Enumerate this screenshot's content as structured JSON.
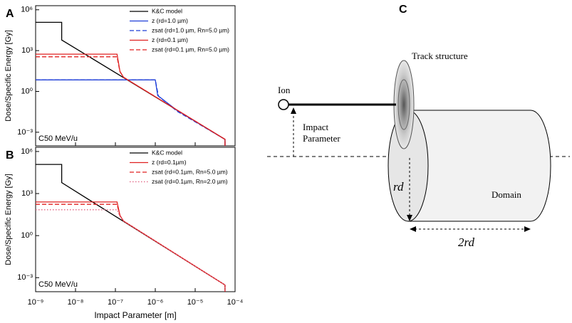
{
  "chart_data": [
    {
      "type": "line",
      "label": "A",
      "ylabel": "Dose/Specific Energy [Gy]",
      "annotation": "C50 MeV/u",
      "log_x": true,
      "log_y": true,
      "xlim": [
        1e-09,
        0.0001
      ],
      "ylim": [
        0.0001,
        2000000.0
      ],
      "xticks": [
        1e-09,
        1e-08,
        1e-07,
        1e-06,
        1e-05,
        0.0001
      ],
      "yticks": [
        {
          "value": 1000000.0,
          "label": "10⁶"
        },
        {
          "value": 1000.0,
          "label": "10³"
        },
        {
          "value": 1,
          "label": "10⁰"
        },
        {
          "value": 0.001,
          "label": "10⁻³"
        }
      ],
      "series": [
        {
          "name": "K&C model",
          "color": "#000000",
          "dash": "solid",
          "x": [
            1e-09,
            4.5e-09,
            4.5e-09,
            5.6e-05,
            5.6e-05
          ],
          "values": [
            120000.0,
            120000.0,
            6000.0,
            0.0003,
            0.0001
          ]
        },
        {
          "name": "z (rd=1.0 µm)",
          "color": "#1f3fd8",
          "dash": "solid",
          "x": [
            1e-09,
            1e-06,
            1.15e-06,
            3.5e-06,
            5.6e-05,
            5.6e-05
          ],
          "values": [
            7,
            7,
            0.5,
            0.04,
            0.0003,
            0.0001
          ]
        },
        {
          "name": "zsat (rd=1.0 µm, Rn=5.0 µm)",
          "color": "#1f3fd8",
          "dash": "dashed",
          "x": [
            1e-09,
            1e-06,
            1.2e-06,
            3.5e-06,
            5.6e-05,
            5.6e-05
          ],
          "values": [
            7,
            7,
            0.45,
            0.035,
            0.0003,
            0.0001
          ]
        },
        {
          "name": "z (rd=0.1 µm)",
          "color": "#e02020",
          "dash": "solid",
          "x": [
            1e-09,
            1.1e-07,
            1.3e-07,
            1.6e-07,
            5.6e-05,
            5.6e-05
          ],
          "values": [
            550,
            550,
            30,
            11,
            0.0003,
            0.0001
          ]
        },
        {
          "name": "zsat (rd=0.1 µm, Rn=5.0 µm)",
          "color": "#e02020",
          "dash": "dashed",
          "x": [
            1e-09,
            1.1e-07,
            1.3e-07,
            1.6e-07,
            5.6e-05,
            5.6e-05
          ],
          "values": [
            350,
            350,
            28,
            11,
            0.0003,
            0.0001
          ]
        }
      ]
    },
    {
      "type": "line",
      "label": "B",
      "ylabel": "Dose/Specific Energy [Gy]",
      "xlabel": "Impact Parameter [m]",
      "annotation": "C50 MeV/u",
      "log_x": true,
      "log_y": true,
      "xlim": [
        1e-09,
        0.0001
      ],
      "ylim": [
        0.0001,
        2000000.0
      ],
      "xticks": [
        {
          "value": 1e-09,
          "label": "10⁻⁹"
        },
        {
          "value": 1e-08,
          "label": "10⁻⁸"
        },
        {
          "value": 1e-07,
          "label": "10⁻⁷"
        },
        {
          "value": 1e-06,
          "label": "10⁻⁶"
        },
        {
          "value": 1e-05,
          "label": "10⁻⁵"
        },
        {
          "value": 0.0001,
          "label": "10⁻⁴"
        }
      ],
      "yticks": [
        {
          "value": 1000000.0,
          "label": "10⁶"
        },
        {
          "value": 1000.0,
          "label": "10³"
        },
        {
          "value": 1,
          "label": "10⁰"
        },
        {
          "value": 0.001,
          "label": "10⁻³"
        }
      ],
      "series": [
        {
          "name": "K&C model",
          "color": "#000000",
          "dash": "solid",
          "x": [
            1e-09,
            4.5e-09,
            4.5e-09,
            5.6e-05,
            5.6e-05
          ],
          "values": [
            120000.0,
            120000.0,
            6000.0,
            0.0003,
            0.0001
          ]
        },
        {
          "name": "z (rd=0.1µm)",
          "color": "#e02020",
          "dash": "solid",
          "x": [
            1e-09,
            1.1e-07,
            1.3e-07,
            1.6e-07,
            5.6e-05,
            5.6e-05
          ],
          "values": [
            250,
            250,
            28,
            11,
            0.0003,
            0.0001
          ]
        },
        {
          "name": "zsat (rd=0.1µm, Rn=5.0 µm)",
          "color": "#e02020",
          "dash": "dashed",
          "x": [
            1e-09,
            1.1e-07,
            1.3e-07,
            1.6e-07,
            5.6e-05,
            5.6e-05
          ],
          "values": [
            170,
            170,
            26,
            11,
            0.0003,
            0.0001
          ]
        },
        {
          "name": "zsat (rd=0.1µm, Rn=2.0 µm)",
          "color": "#e06080",
          "dash": "dotted",
          "x": [
            1e-09,
            1.1e-07,
            1.3e-07,
            1.6e-07,
            5.6e-05,
            5.6e-05
          ],
          "values": [
            70,
            70,
            24,
            11,
            0.0003,
            0.0001
          ]
        }
      ]
    }
  ],
  "diagram": {
    "label": "C",
    "track": "Track structure",
    "ion": "Ion",
    "impact": [
      "Impact",
      "Parameter"
    ],
    "radius": "rd",
    "domain": "Domain",
    "length": "2rd"
  }
}
